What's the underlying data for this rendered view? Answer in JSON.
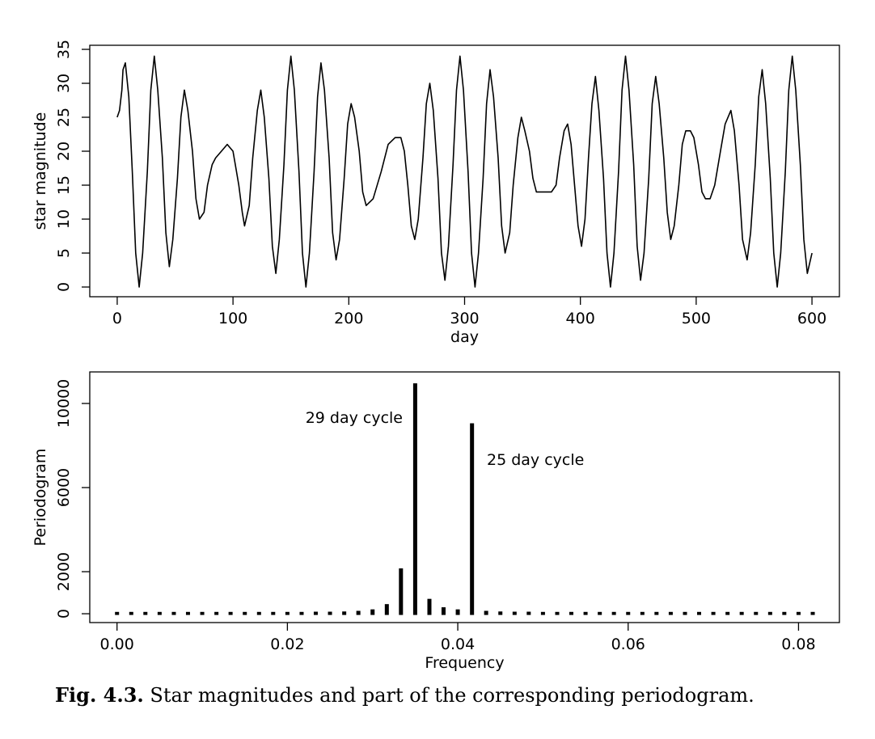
{
  "chart_data": [
    {
      "type": "line",
      "xlabel": "day",
      "ylabel": "star magnitude",
      "color": "#000000",
      "x": [
        0,
        2,
        4,
        5,
        7,
        10,
        13,
        16,
        19,
        22,
        26,
        29,
        32,
        35,
        39,
        42,
        45,
        48,
        52,
        55,
        58,
        61,
        65,
        68,
        71,
        75,
        78,
        82,
        85,
        90,
        95,
        100,
        102,
        105,
        108,
        110,
        114,
        117,
        121,
        124,
        127,
        131,
        134,
        137,
        140,
        144,
        147,
        150,
        153,
        157,
        160,
        163,
        166,
        170,
        173,
        176,
        179,
        183,
        186,
        189,
        192,
        196,
        199,
        202,
        205,
        209,
        212,
        215,
        221,
        228,
        234,
        240,
        245,
        248,
        251,
        254,
        257,
        260,
        264,
        267,
        270,
        273,
        277,
        280,
        283,
        286,
        290,
        293,
        296,
        299,
        303,
        306,
        309,
        312,
        316,
        319,
        322,
        325,
        329,
        332,
        335,
        339,
        342,
        346,
        349,
        352,
        356,
        359,
        362,
        375,
        379,
        382,
        386,
        389,
        392,
        395,
        398,
        401,
        404,
        407,
        410,
        413,
        416,
        420,
        423,
        426,
        429,
        433,
        436,
        439,
        442,
        446,
        449,
        452,
        455,
        459,
        462,
        465,
        468,
        472,
        475,
        478,
        481,
        485,
        488,
        491,
        495,
        498,
        502,
        505,
        508,
        512,
        516,
        521,
        525,
        530,
        533,
        537,
        540,
        544,
        547,
        551,
        554,
        557,
        560,
        564,
        567,
        570,
        573,
        577,
        580,
        583,
        586,
        590,
        593,
        596,
        600
      ],
      "values": [
        25,
        26,
        29,
        32,
        33,
        28,
        17,
        5,
        0,
        5,
        17,
        29,
        34,
        29,
        19,
        8,
        3,
        7,
        16,
        25,
        29,
        26,
        20,
        13,
        10,
        11,
        15,
        18,
        19,
        20,
        21,
        20,
        18,
        15,
        11,
        9,
        12,
        19,
        26,
        29,
        25,
        16,
        6,
        2,
        7,
        18,
        29,
        34,
        29,
        17,
        5,
        0,
        5,
        17,
        28,
        33,
        29,
        19,
        8,
        4,
        7,
        16,
        24,
        27,
        25,
        20,
        14,
        12,
        13,
        17,
        21,
        22,
        22,
        20,
        15,
        9,
        7,
        10,
        19,
        27,
        30,
        26,
        16,
        5,
        1,
        6,
        18,
        29,
        34,
        29,
        17,
        5,
        0,
        5,
        16,
        27,
        32,
        28,
        19,
        9,
        5,
        8,
        15,
        22,
        25,
        23,
        20,
        16,
        14,
        14,
        15,
        19,
        23,
        24,
        21,
        15,
        9,
        6,
        10,
        19,
        27,
        31,
        26,
        16,
        5,
        0,
        5,
        17,
        29,
        34,
        29,
        18,
        6,
        1,
        5,
        16,
        27,
        31,
        27,
        19,
        11,
        7,
        9,
        15,
        21,
        23,
        23,
        22,
        18,
        14,
        13,
        13,
        15,
        20,
        24,
        26,
        23,
        15,
        7,
        4,
        8,
        18,
        28,
        32,
        27,
        16,
        5,
        0,
        5,
        17,
        29,
        34,
        29,
        18,
        7,
        2,
        5
      ],
      "xlim": [
        -23.7,
        623.7
      ],
      "ylim": [
        -1.43,
        35.6
      ],
      "xticks": [
        0,
        100,
        200,
        300,
        400,
        500,
        600
      ],
      "yticks": [
        0,
        5,
        10,
        15,
        20,
        25,
        30,
        35
      ]
    },
    {
      "type": "bar",
      "xlabel": "Frequency",
      "ylabel": "Periodogram",
      "color": "#000000",
      "x": [
        0,
        0.00167,
        0.00333,
        0.005,
        0.00667,
        0.00833,
        0.01,
        0.01167,
        0.01333,
        0.015,
        0.01667,
        0.01833,
        0.02,
        0.02167,
        0.02333,
        0.025,
        0.02667,
        0.02833,
        0.03,
        0.03167,
        0.03333,
        0.035,
        0.03667,
        0.03833,
        0.04,
        0.04167,
        0.04333,
        0.045,
        0.04667,
        0.04833,
        0.05,
        0.05167,
        0.05333,
        0.055,
        0.05667,
        0.05833,
        0.06,
        0.06167,
        0.06333,
        0.065,
        0.06667,
        0.06833,
        0.07,
        0.07167,
        0.07333,
        0.075,
        0.07667,
        0.07833,
        0.08,
        0.08167
      ],
      "values": [
        30,
        30,
        30,
        30,
        30,
        30,
        30,
        30,
        30,
        30,
        30,
        30,
        30,
        30,
        40,
        40,
        50,
        80,
        150,
        400,
        2100,
        10900,
        650,
        250,
        150,
        9000,
        80,
        50,
        40,
        40,
        30,
        30,
        30,
        30,
        30,
        30,
        30,
        30,
        30,
        30,
        30,
        30,
        30,
        30,
        30,
        30,
        30,
        30,
        30,
        30
      ],
      "xlim": [
        -0.0032,
        0.0848
      ],
      "ylim": [
        -420,
        11500
      ],
      "xticks": [
        {
          "value": 0,
          "label": "0.00"
        },
        {
          "value": 0.02,
          "label": "0.02"
        },
        {
          "value": 0.04,
          "label": "0.04"
        },
        {
          "value": 0.06,
          "label": "0.06"
        },
        {
          "value": 0.08,
          "label": "0.08"
        }
      ],
      "yticks": [
        0,
        2000,
        6000,
        10000
      ],
      "annotations": [
        "29 day cycle",
        "25 day cycle"
      ]
    }
  ],
  "caption": {
    "label": "Fig. 4.3.",
    "text": "Star magnitudes and part of the corresponding periodogram."
  }
}
